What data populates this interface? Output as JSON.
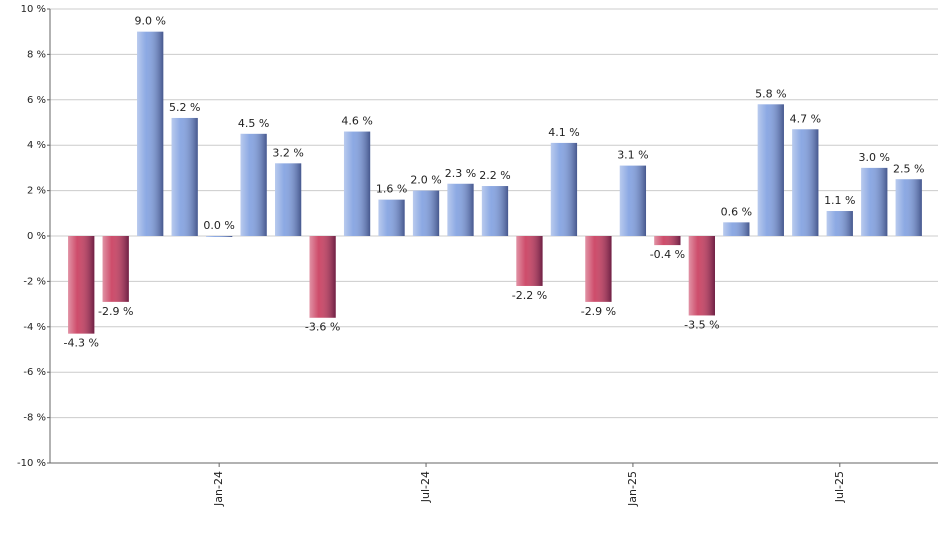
{
  "chart_data": {
    "type": "bar",
    "categories": [
      null,
      null,
      null,
      null,
      "Jan-24",
      null,
      null,
      null,
      null,
      null,
      "Jul-24",
      null,
      null,
      null,
      null,
      null,
      "Jan-25",
      null,
      null,
      null,
      null,
      null,
      "Jul-25",
      null,
      null
    ],
    "values": [
      -4.3,
      -2.9,
      9.0,
      5.2,
      0.0,
      4.5,
      3.2,
      -3.6,
      4.6,
      1.6,
      2.0,
      2.3,
      2.2,
      -2.2,
      4.1,
      -2.9,
      3.1,
      -0.4,
      -3.5,
      0.6,
      5.8,
      4.7,
      1.1,
      3.0,
      2.5
    ],
    "value_labels": [
      "-4.3 %",
      "-2.9 %",
      "9.0 %",
      "5.2 %",
      "0.0 %",
      "4.5 %",
      "3.2 %",
      "-3.6 %",
      "4.6 %",
      "1.6 %",
      "2.0 %",
      "2.3 %",
      "2.2 %",
      "-2.2 %",
      "4.1 %",
      "-2.9 %",
      "3.1 %",
      "-0.4 %",
      "-3.5 %",
      "0.6 %",
      "5.8 %",
      "4.7 %",
      "1.1 %",
      "3.0 %",
      "2.5 %"
    ],
    "positive_color": "#7f9fe0",
    "negative_color": "#c8385a",
    "ylim": [
      -10,
      10
    ],
    "yticks": [
      {
        "value": -10,
        "label": "-10 %"
      },
      {
        "value": -8,
        "label": "-8 %"
      },
      {
        "value": -6,
        "label": "-6 %"
      },
      {
        "value": -4,
        "label": "-4 %"
      },
      {
        "value": -2,
        "label": "-2 %"
      },
      {
        "value": 0,
        "label": "0 %"
      },
      {
        "value": 2,
        "label": "2 %"
      },
      {
        "value": 4,
        "label": "4 %"
      },
      {
        "value": 6,
        "label": "6 %"
      },
      {
        "value": 8,
        "label": "8 %"
      },
      {
        "value": 10,
        "label": "10 %"
      }
    ],
    "grid": true
  }
}
